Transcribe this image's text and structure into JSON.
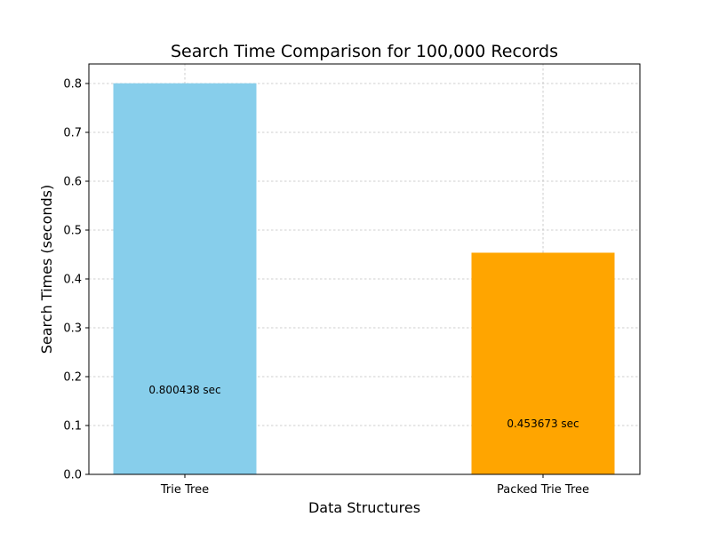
{
  "chart_data": {
    "type": "bar",
    "title": "Search Time Comparison for 100,000 Records",
    "xlabel": "Data Structures",
    "ylabel": "Search Times (seconds)",
    "categories": [
      "Trie Tree",
      "Packed Trie Tree"
    ],
    "values": [
      0.800438,
      0.453673
    ],
    "data_labels": [
      "0.800438 sec",
      "0.453673 sec"
    ],
    "colors": [
      "#87ceeb",
      "#ffa500"
    ],
    "ylim": [
      0,
      0.84
    ],
    "yticks": [
      0.0,
      0.1,
      0.2,
      0.3,
      0.4,
      0.5,
      0.6,
      0.7,
      0.8
    ],
    "ytick_labels": [
      "0.0",
      "0.1",
      "0.2",
      "0.3",
      "0.4",
      "0.5",
      "0.6",
      "0.7",
      "0.8"
    ],
    "grid": true,
    "legend": "none"
  }
}
